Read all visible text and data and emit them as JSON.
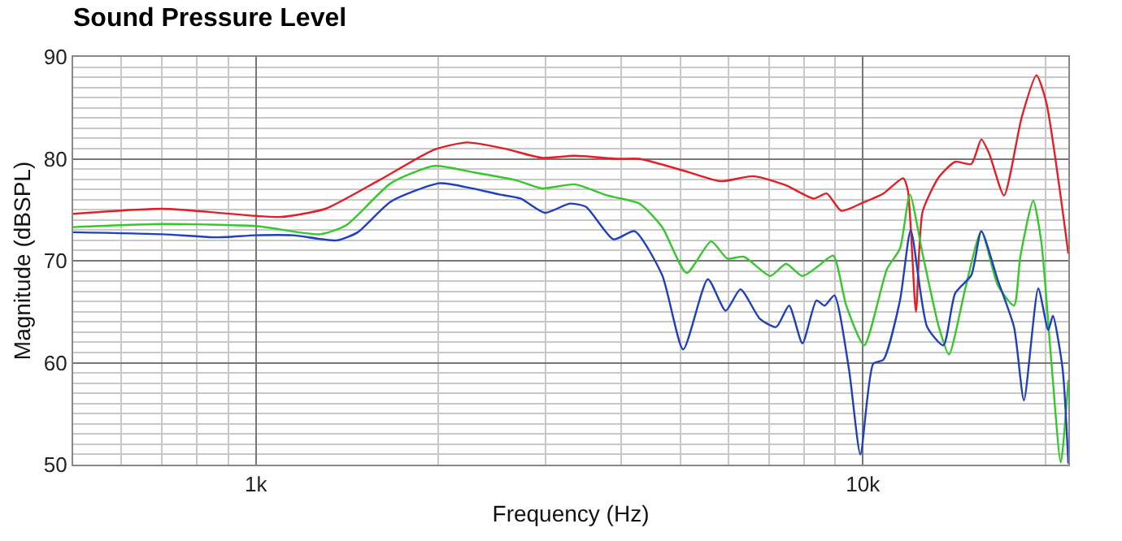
{
  "chart_data": {
    "type": "line",
    "title": "Sound Pressure Level",
    "xlabel": "Frequency (Hz)",
    "ylabel": "Magnitude (dBSPL)",
    "log": "x",
    "xlim": [
      500,
      21800
    ],
    "ylim": [
      50,
      90
    ],
    "xticks": [
      {
        "value": 1000,
        "label": "1k"
      },
      {
        "value": 10000,
        "label": "10k"
      }
    ],
    "yticks": [
      50,
      60,
      70,
      80,
      90
    ],
    "grid": true,
    "marker": "none",
    "line_style": "solid",
    "series": [
      {
        "color": "#e41e26",
        "x": [
          500,
          702,
          1000,
          1102,
          1302,
          1596,
          1968,
          2228,
          2567,
          2958,
          3350,
          3956,
          4287,
          5157,
          5834,
          6600,
          7470,
          8297,
          8716,
          9213,
          10000,
          10810,
          11650,
          11860,
          12230,
          12540,
          13340,
          14190,
          15090,
          15670,
          16150,
          17080,
          18270,
          19320,
          20040,
          21800
        ],
        "values": [
          74.6,
          75.1,
          74.4,
          74.3,
          75.1,
          77.9,
          80.9,
          81.6,
          81.0,
          80.1,
          80.3,
          80.0,
          80.0,
          78.7,
          77.8,
          78.3,
          77.4,
          76.1,
          76.6,
          74.9,
          75.7,
          76.6,
          78.1,
          76.9,
          65.0,
          74.8,
          78.2,
          79.7,
          79.5,
          81.9,
          80.5,
          76.4,
          84.1,
          88.2,
          85.6,
          70.7
        ]
      },
      {
        "color": "#35c82a",
        "x": [
          500,
          702,
          1000,
          1277,
          1410,
          1668,
          1968,
          2270,
          2681,
          2958,
          3350,
          3795,
          4287,
          4669,
          5124,
          5623,
          5983,
          6366,
          7035,
          7470,
          7950,
          8453,
          8937,
          9389,
          10050,
          10960,
          11510,
          11950,
          12540,
          13340,
          13860,
          14750,
          15670,
          16680,
          17740,
          18170,
          19080,
          19680,
          20420,
          21180,
          21800
        ],
        "values": [
          73.3,
          73.6,
          73.4,
          72.6,
          73.5,
          77.6,
          79.3,
          78.7,
          77.9,
          77.1,
          77.5,
          76.4,
          75.6,
          73.3,
          68.8,
          71.9,
          70.2,
          70.4,
          68.5,
          69.7,
          68.5,
          69.5,
          70.5,
          65.6,
          61.7,
          69.2,
          71.2,
          76.5,
          70.7,
          63.5,
          60.8,
          67.3,
          72.9,
          67.6,
          65.6,
          70.4,
          75.9,
          71.8,
          60.4,
          50.2,
          58.3
        ]
      },
      {
        "color": "#1e3fbe",
        "x": [
          500,
          702,
          860,
          1000,
          1150,
          1359,
          1472,
          1668,
          2005,
          2270,
          2519,
          2729,
          2994,
          3286,
          3496,
          3882,
          4207,
          4669,
          5058,
          5554,
          5942,
          6285,
          6767,
          7197,
          7558,
          7950,
          8385,
          8650,
          8976,
          9483,
          9906,
          10400,
          10810,
          11510,
          11990,
          12760,
          13570,
          14190,
          15090,
          15670,
          16680,
          17740,
          18420,
          19450,
          20200,
          20560,
          21330,
          21800
        ],
        "values": [
          72.8,
          72.6,
          72.3,
          72.5,
          72.5,
          72.0,
          72.8,
          75.8,
          77.6,
          77.1,
          76.5,
          76.1,
          74.7,
          75.6,
          75.3,
          72.1,
          72.9,
          68.6,
          61.3,
          68.2,
          65.1,
          67.2,
          64.3,
          63.5,
          65.6,
          61.9,
          66.1,
          65.6,
          66.6,
          59.4,
          51.0,
          59.9,
          60.3,
          66.1,
          73.0,
          63.5,
          61.7,
          66.8,
          68.6,
          72.9,
          68.1,
          63.5,
          56.3,
          67.3,
          63.2,
          64.6,
          59.4,
          50.1
        ]
      }
    ]
  }
}
